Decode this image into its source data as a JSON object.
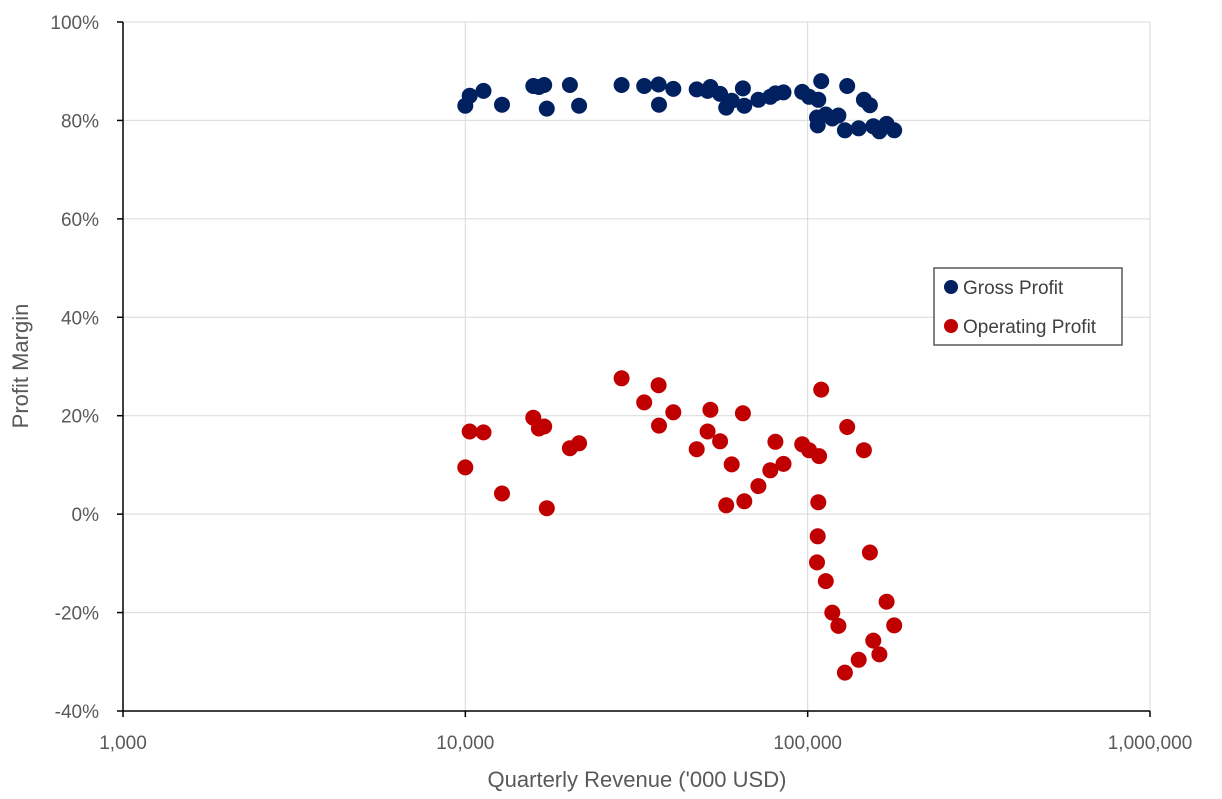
{
  "chart_data": {
    "type": "scatter",
    "xlabel": "Quarterly Revenue ('000 USD)",
    "ylabel": "Profit Margin",
    "x_scale": "log",
    "xlim": [
      1000,
      1000000
    ],
    "ylim": [
      -40,
      100
    ],
    "x_ticks": [
      1000,
      10000,
      100000,
      1000000
    ],
    "x_tick_labels": [
      "1,000",
      "10,000",
      "100,000",
      "1,000,000"
    ],
    "y_ticks": [
      -40,
      -20,
      0,
      20,
      40,
      60,
      80,
      100
    ],
    "y_tick_labels": [
      "-40%",
      "-20%",
      "0%",
      "20%",
      "40%",
      "60%",
      "80%",
      "100%"
    ],
    "grid": true,
    "legend_position": "right",
    "series": [
      {
        "name": "Gross Profit",
        "color": "#002060",
        "points": [
          [
            10000,
            83
          ],
          [
            10300,
            85
          ],
          [
            11300,
            86
          ],
          [
            12800,
            83.2
          ],
          [
            15800,
            87
          ],
          [
            16400,
            86.8
          ],
          [
            17000,
            87.2
          ],
          [
            17300,
            82.4
          ],
          [
            20200,
            87.2
          ],
          [
            21500,
            83
          ],
          [
            28600,
            87.2
          ],
          [
            33300,
            87
          ],
          [
            36700,
            87.3
          ],
          [
            36800,
            83.2
          ],
          [
            40500,
            86.4
          ],
          [
            47400,
            86.3
          ],
          [
            51000,
            86
          ],
          [
            52000,
            86.8
          ],
          [
            55500,
            85.4
          ],
          [
            57800,
            82.6
          ],
          [
            60000,
            84
          ],
          [
            64700,
            86.5
          ],
          [
            65300,
            83
          ],
          [
            71800,
            84.2
          ],
          [
            77800,
            84.8
          ],
          [
            80500,
            85.5
          ],
          [
            85000,
            85.7
          ],
          [
            96400,
            85.8
          ],
          [
            101000,
            84.8
          ],
          [
            106500,
            80.6
          ],
          [
            107000,
            79
          ],
          [
            107400,
            84.2
          ],
          [
            109500,
            88
          ],
          [
            113000,
            81.2
          ],
          [
            118000,
            80.4
          ],
          [
            123000,
            81
          ],
          [
            128500,
            78
          ],
          [
            130500,
            87
          ],
          [
            141000,
            78.4
          ],
          [
            146000,
            84.2
          ],
          [
            152000,
            83.1
          ],
          [
            155500,
            78.8
          ],
          [
            162000,
            77.8
          ],
          [
            170000,
            79.3
          ],
          [
            179000,
            78
          ]
        ]
      },
      {
        "name": "Operating Profit",
        "color": "#c00000",
        "points": [
          [
            10000,
            9.5
          ],
          [
            10300,
            16.8
          ],
          [
            11300,
            16.6
          ],
          [
            12800,
            4.2
          ],
          [
            15800,
            19.6
          ],
          [
            16400,
            17.4
          ],
          [
            17000,
            17.8
          ],
          [
            17300,
            1.2
          ],
          [
            20200,
            13.4
          ],
          [
            21500,
            14.4
          ],
          [
            28600,
            27.6
          ],
          [
            33300,
            22.7
          ],
          [
            36700,
            26.2
          ],
          [
            36800,
            18
          ],
          [
            40500,
            20.7
          ],
          [
            47400,
            13.2
          ],
          [
            51000,
            16.8
          ],
          [
            52000,
            21.2
          ],
          [
            55500,
            14.8
          ],
          [
            57800,
            1.8
          ],
          [
            60000,
            10.1
          ],
          [
            64700,
            20.5
          ],
          [
            65300,
            2.6
          ],
          [
            71800,
            5.7
          ],
          [
            77800,
            8.9
          ],
          [
            80500,
            14.7
          ],
          [
            85000,
            10.2
          ],
          [
            96400,
            14.2
          ],
          [
            101000,
            13
          ],
          [
            106500,
            -9.8
          ],
          [
            107000,
            -4.5
          ],
          [
            107400,
            2.4
          ],
          [
            108000,
            11.8
          ],
          [
            109500,
            25.3
          ],
          [
            113000,
            -13.6
          ],
          [
            118000,
            -20
          ],
          [
            123000,
            -22.7
          ],
          [
            128500,
            -32.2
          ],
          [
            130500,
            17.7
          ],
          [
            141000,
            -29.6
          ],
          [
            146000,
            13
          ],
          [
            152000,
            -7.8
          ],
          [
            155500,
            -25.7
          ],
          [
            162000,
            -28.5
          ],
          [
            170000,
            -17.8
          ],
          [
            179000,
            -22.6
          ]
        ]
      }
    ]
  }
}
